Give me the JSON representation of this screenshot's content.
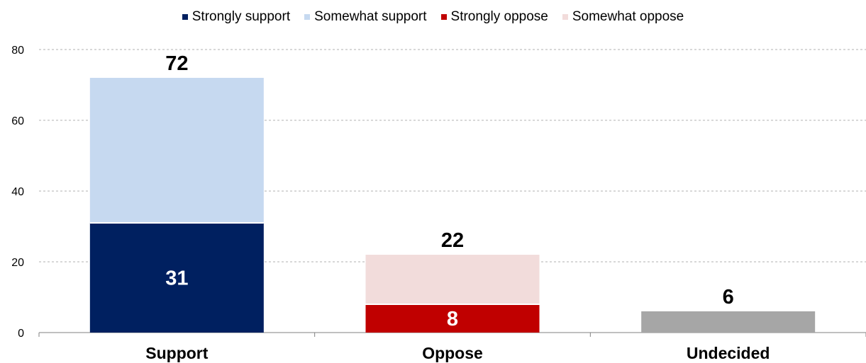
{
  "chart_data": {
    "type": "bar",
    "stacked": true,
    "categories": [
      "Support",
      "Oppose",
      "Undecided"
    ],
    "y_ticks": [
      "0",
      "20",
      "40",
      "60",
      "80"
    ],
    "ylim": [
      0,
      80
    ],
    "grid": true,
    "legend_position": "top-center",
    "legend": [
      {
        "label": "Strongly support",
        "color": "#002060"
      },
      {
        "label": "Somewhat support",
        "color": "#c6d9f0"
      },
      {
        "label": "Strongly oppose",
        "color": "#c00000"
      },
      {
        "label": "Somewhat oppose",
        "color": "#f2dcdb"
      }
    ],
    "segments": [
      {
        "category": "Support",
        "base": 0,
        "value": 31,
        "color": "#002060",
        "label": "31",
        "label_color": "#ffffff"
      },
      {
        "category": "Support",
        "base": 31,
        "value": 41,
        "color": "#c6d9f0",
        "label": "",
        "label_color": "#000000"
      },
      {
        "category": "Oppose",
        "base": 0,
        "value": 8,
        "color": "#c00000",
        "label": "8",
        "label_color": "#ffffff"
      },
      {
        "category": "Oppose",
        "base": 8,
        "value": 14,
        "color": "#f2dcdb",
        "label": "",
        "label_color": "#000000"
      },
      {
        "category": "Undecided",
        "base": 0,
        "value": 6,
        "color": "#a6a6a6",
        "label": "",
        "label_color": "#000000"
      }
    ],
    "totals": [
      {
        "category": "Support",
        "value": 72,
        "label": "72"
      },
      {
        "category": "Oppose",
        "value": 22,
        "label": "22"
      },
      {
        "category": "Undecided",
        "value": 6,
        "label": "6"
      }
    ]
  }
}
